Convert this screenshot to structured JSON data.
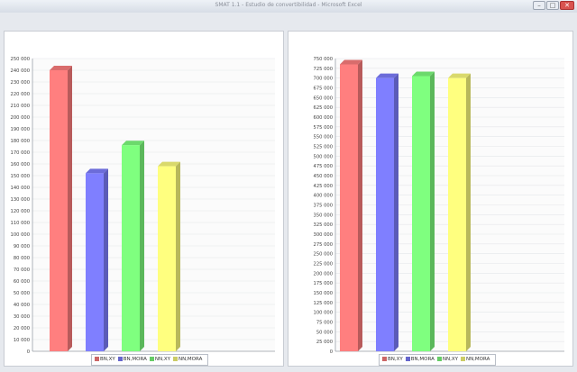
{
  "window": {
    "title": "SMAT 1.1 - Estudio de convertibilidad - Microsoft Excel"
  },
  "colors": {
    "BN_XY": "#ff7f7f",
    "BN_MORA": "#7f7fff",
    "NN_XY": "#7fff7f",
    "NN_MORA": "#ffff7f"
  },
  "chart_data": [
    {
      "type": "bar",
      "title": "",
      "xlabel": "",
      "ylabel": "",
      "ylim": [
        0,
        250000
      ],
      "ytick_step": 10000,
      "grid": true,
      "legend_position": "bottom",
      "categories": [
        "BN,XY",
        "BN,MORA",
        "NN,XY",
        "NN,MORA"
      ],
      "values": [
        240000,
        152000,
        176000,
        158000
      ]
    },
    {
      "type": "bar",
      "title": "",
      "xlabel": "",
      "ylabel": "",
      "ylim": [
        0,
        750000
      ],
      "ytick_step": 25000,
      "grid": true,
      "legend_position": "bottom",
      "categories": [
        "BN,XY",
        "BN,MORA",
        "NN,XY",
        "NN,MORA"
      ],
      "values": [
        735000,
        700000,
        705000,
        700000
      ]
    }
  ]
}
